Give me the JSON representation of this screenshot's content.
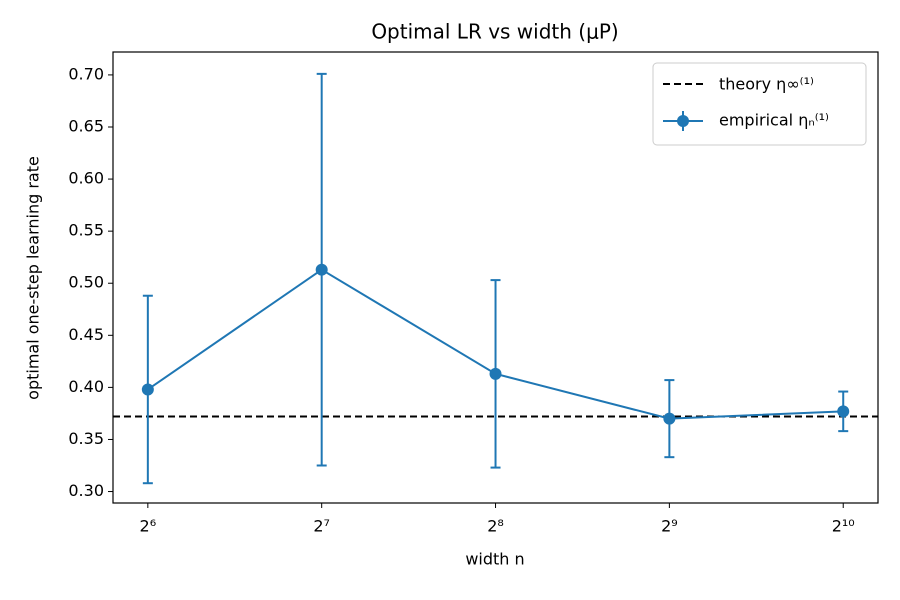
{
  "chart_data": {
    "type": "errorbar-line",
    "title": "Optimal LR vs width (μP)",
    "x_label": "width n",
    "y_label": "optimal one-step learning rate",
    "x": [
      64,
      128,
      256,
      512,
      1024
    ],
    "x_scale": "log2",
    "series": [
      {
        "name": "empirical ηₙ⁽¹⁾",
        "color": "#1f77b4",
        "values": [
          0.398,
          0.513,
          0.413,
          0.37,
          0.377
        ],
        "errors": [
          0.09,
          0.188,
          0.09,
          0.037,
          0.019
        ]
      }
    ],
    "reference_line": {
      "name": "theory η∞⁽¹⁾",
      "value": 0.372,
      "color": "#000000",
      "style": "dashed"
    },
    "xlim": [
      55.7,
      1176.3
    ],
    "xticks": [
      {
        "value": 64,
        "label": "2⁶"
      },
      {
        "value": 128,
        "label": "2⁷"
      },
      {
        "value": 256,
        "label": "2⁸"
      },
      {
        "value": 512,
        "label": "2⁹"
      },
      {
        "value": 1024,
        "label": "2¹⁰"
      }
    ],
    "ylim": [
      0.289,
      0.722
    ],
    "yticks": [
      {
        "value": 0.3,
        "label": "0.30"
      },
      {
        "value": 0.35,
        "label": "0.35"
      },
      {
        "value": 0.4,
        "label": "0.40"
      },
      {
        "value": 0.45,
        "label": "0.45"
      },
      {
        "value": 0.5,
        "label": "0.50"
      },
      {
        "value": 0.55,
        "label": "0.55"
      },
      {
        "value": 0.6,
        "label": "0.60"
      },
      {
        "value": 0.65,
        "label": "0.65"
      },
      {
        "value": 0.7,
        "label": "0.70"
      }
    ],
    "legend": "upper right",
    "grid": false
  }
}
